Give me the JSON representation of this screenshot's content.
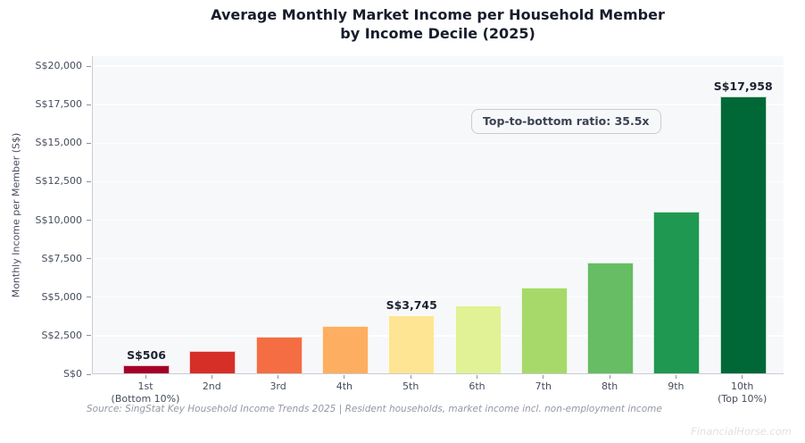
{
  "chart_data": {
    "type": "bar",
    "title": "Average Monthly Market Income per Household Member by Income Decile (2025)",
    "title_lines": [
      "Average Monthly Market Income per Household Member",
      "by Income Decile (2025)"
    ],
    "ylabel": "Monthly Income per Member (S$)",
    "xlabel": "",
    "categories": [
      "1st",
      "2nd",
      "3rd",
      "4th",
      "5th",
      "6th",
      "7th",
      "8th",
      "9th",
      "10th"
    ],
    "category_sublabels": [
      "(Bottom 10%)",
      "",
      "",
      "",
      "",
      "",
      "",
      "",
      "",
      "(Top 10%)"
    ],
    "values": [
      506,
      1450,
      2400,
      3060,
      3745,
      4430,
      5550,
      7170,
      10520,
      17958
    ],
    "value_labels": [
      "S$506",
      "",
      "",
      "",
      "S$3,745",
      "",
      "",
      "",
      "",
      "S$17,958"
    ],
    "bar_colors": [
      "#a50026",
      "#d62f27",
      "#f46d43",
      "#fdae61",
      "#fee593",
      "#e0f295",
      "#a6d96a",
      "#66bd63",
      "#1f9852",
      "#006837"
    ],
    "yticks": [
      0,
      2500,
      5000,
      7500,
      10000,
      12500,
      15000,
      17500,
      20000
    ],
    "ytick_labels": [
      "S$0",
      "S$2,500",
      "S$5,000",
      "S$7,500",
      "S$10,000",
      "S$12,500",
      "S$15,000",
      "S$17,500",
      "S$20,000"
    ],
    "ylim": [
      0,
      20600
    ],
    "grid": true,
    "legend": "none",
    "annotation": "Top-to-bottom ratio: 35.5x",
    "source_note": "Source: SingStat Key Household Income Trends 2025 | Resident households, market income incl. non-employment income",
    "watermark": "FinancialHorse.com"
  },
  "colors": {
    "figure_bg": "#ffffff",
    "plot_bg": "#f7f8fa",
    "gridline": "#ffffff",
    "spine": "#c9ccd3",
    "title_text": "#181d2b",
    "tick_text": "#454c5c",
    "bar_label_text": "#1b2130",
    "annotation_text": "#3a4354",
    "annotation_bg": "#f7f8fa",
    "annotation_border": "#c7cbd3",
    "source_text": "#9298a3",
    "watermark_text": "#dfe1e6"
  }
}
